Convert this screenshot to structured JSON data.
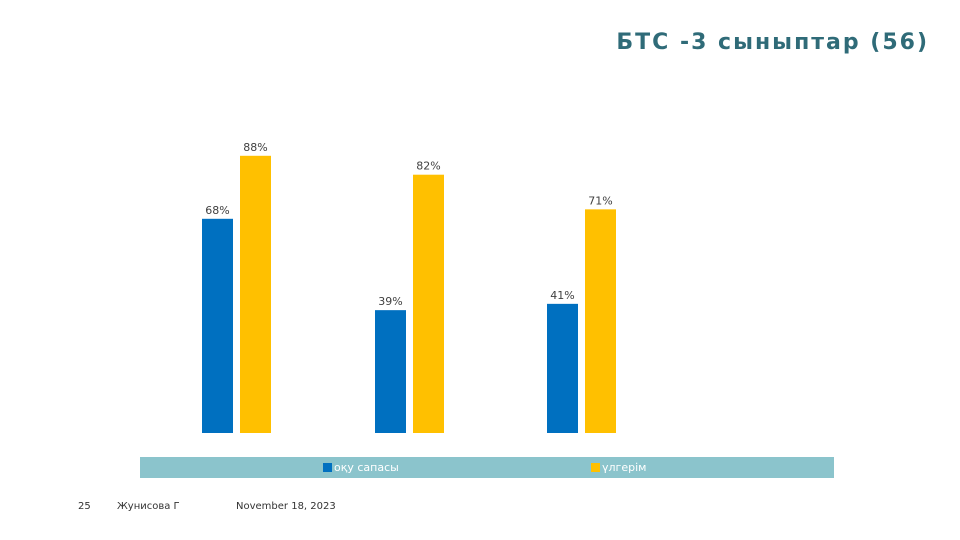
{
  "slide": {
    "title": "БТС -3 сыныптар (56)",
    "footer": {
      "page_number": "25",
      "author": "Жунисова Г",
      "date": "November 18, 2023"
    }
  },
  "chart_data": {
    "type": "bar",
    "title": "БТС -3 сыныптар (56)",
    "categories": [
      "",
      "",
      ""
    ],
    "series": [
      {
        "name": "оқу сапасы",
        "color": "#0070c0",
        "values": [
          68,
          39,
          41
        ],
        "labels": [
          "68%",
          "39%",
          "41%"
        ]
      },
      {
        "name": "үлгерім",
        "color": "#ffc000",
        "values": [
          88,
          82,
          71
        ],
        "labels": [
          "88%",
          "82%",
          "71%"
        ]
      }
    ],
    "ylim": [
      0,
      100
    ],
    "value_format": "percent",
    "grid": false,
    "legend_position": "bottom",
    "xlabel": "",
    "ylabel": ""
  }
}
